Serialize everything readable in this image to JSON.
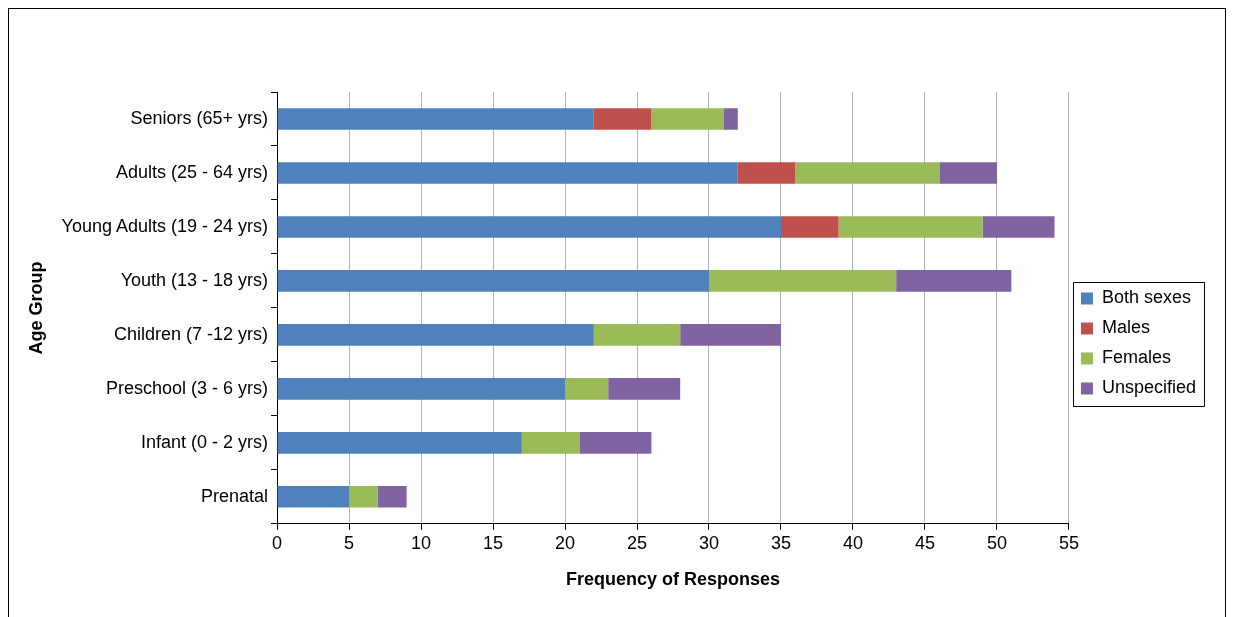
{
  "chart_data": {
    "type": "bar",
    "orientation": "horizontal",
    "stacked": true,
    "xlabel": "Frequency of Responses",
    "ylabel": "Age Group",
    "categories": [
      "Seniors (65+ yrs)",
      "Adults (25 - 64 yrs)",
      "Young Adults (19 - 24 yrs)",
      "Youth (13 - 18 yrs)",
      "Children (7 -12 yrs)",
      "Preschool (3 - 6 yrs)",
      "Infant (0 - 2 yrs)",
      "Prenatal"
    ],
    "series": [
      {
        "name": "Both sexes",
        "color": "#4f81bd",
        "values": [
          22,
          32,
          35,
          30,
          22,
          20,
          17,
          5
        ]
      },
      {
        "name": "Males",
        "color": "#c0504d",
        "values": [
          4,
          4,
          4,
          0,
          0,
          0,
          0,
          0
        ]
      },
      {
        "name": "Females",
        "color": "#9bbb59",
        "values": [
          5,
          10,
          10,
          13,
          6,
          3,
          4,
          2
        ]
      },
      {
        "name": "Unspecified",
        "color": "#8064a2",
        "values": [
          1,
          4,
          5,
          8,
          7,
          5,
          5,
          2
        ]
      }
    ],
    "xlim": [
      0,
      55
    ],
    "xticks": [
      0,
      5,
      10,
      15,
      20,
      25,
      30,
      35,
      40,
      45,
      50,
      55
    ],
    "grid": "x",
    "legend": "right"
  }
}
